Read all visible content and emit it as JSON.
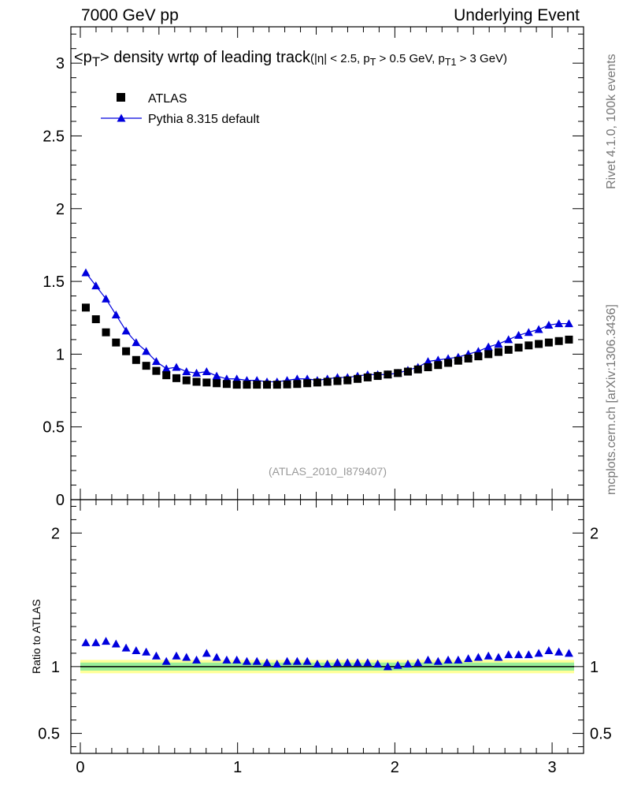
{
  "header": {
    "left": "7000 GeV pp",
    "right": "Underlying Event"
  },
  "title": {
    "main": "<p_T> density wrtφ of leading track",
    "sub": "(|η| < 2.5, p_T > 0.5 GeV, p_T1 > 3 GeV)"
  },
  "side_labels": {
    "rivet": "Rivet 4.1.0,  100k events",
    "mcplots": "mcplots.cern.ch [arXiv:1306.3436]"
  },
  "watermark": "(ATLAS_2010_I879407)",
  "ratio_ylabel": "Ratio to ATLAS",
  "legend": [
    {
      "label": "ATLAS",
      "marker": "square",
      "color": "#000000"
    },
    {
      "label": "Pythia 8.315 default",
      "marker": "triangle",
      "color": "#0000dd"
    }
  ],
  "chart_data": [
    {
      "type": "scatter",
      "panel": "main",
      "xlabel": "",
      "ylabel": "",
      "xlim": [
        -0.06,
        3.2
      ],
      "ylim": [
        0,
        3.25
      ],
      "yticks": [
        0,
        0.5,
        1,
        1.5,
        2,
        2.5,
        3
      ],
      "yticklabels": [
        "0",
        "0.5",
        "1",
        "1.5",
        "2",
        "2.5",
        "3"
      ],
      "x": [
        0.035,
        0.099,
        0.163,
        0.227,
        0.291,
        0.355,
        0.419,
        0.483,
        0.547,
        0.611,
        0.675,
        0.739,
        0.803,
        0.867,
        0.931,
        0.995,
        1.059,
        1.123,
        1.187,
        1.251,
        1.315,
        1.379,
        1.443,
        1.507,
        1.571,
        1.635,
        1.699,
        1.763,
        1.827,
        1.891,
        1.955,
        2.019,
        2.083,
        2.147,
        2.211,
        2.275,
        2.339,
        2.403,
        2.467,
        2.531,
        2.595,
        2.659,
        2.723,
        2.787,
        2.851,
        2.915,
        2.979,
        3.043,
        3.107
      ],
      "series": [
        {
          "name": "ATLAS",
          "color": "#000000",
          "values": [
            1.32,
            1.24,
            1.15,
            1.08,
            1.02,
            0.96,
            0.92,
            0.885,
            0.855,
            0.835,
            0.82,
            0.81,
            0.805,
            0.8,
            0.795,
            0.79,
            0.79,
            0.79,
            0.79,
            0.79,
            0.792,
            0.795,
            0.8,
            0.805,
            0.81,
            0.815,
            0.82,
            0.83,
            0.84,
            0.85,
            0.86,
            0.87,
            0.88,
            0.895,
            0.91,
            0.925,
            0.94,
            0.955,
            0.97,
            0.985,
            1.0,
            1.015,
            1.03,
            1.045,
            1.06,
            1.07,
            1.08,
            1.09,
            1.1
          ]
        },
        {
          "name": "Pythia 8.315 default",
          "color": "#0000dd",
          "values": [
            1.56,
            1.47,
            1.38,
            1.27,
            1.16,
            1.08,
            1.02,
            0.95,
            0.9,
            0.91,
            0.88,
            0.87,
            0.88,
            0.85,
            0.83,
            0.83,
            0.82,
            0.82,
            0.81,
            0.81,
            0.82,
            0.83,
            0.83,
            0.82,
            0.83,
            0.84,
            0.84,
            0.85,
            0.86,
            0.86,
            0.86,
            0.87,
            0.89,
            0.91,
            0.95,
            0.96,
            0.97,
            0.98,
            1.0,
            1.02,
            1.05,
            1.07,
            1.1,
            1.13,
            1.15,
            1.17,
            1.2,
            1.21,
            1.21
          ]
        }
      ]
    },
    {
      "type": "scatter",
      "panel": "ratio",
      "ylabel": "Ratio to ATLAS",
      "xlim": [
        -0.06,
        3.2
      ],
      "ylim": [
        0.35,
        2.25
      ],
      "yticks": [
        0.5,
        1,
        2
      ],
      "yticklabels": [
        "0.5",
        "1",
        "2"
      ],
      "xticks": [
        0,
        1,
        2,
        3
      ],
      "xticklabels": [
        "0",
        "1",
        "2",
        "3"
      ],
      "band_green": [
        0.97,
        1.03
      ],
      "band_yellow": [
        0.95,
        1.05
      ],
      "series": [
        {
          "name": "Pythia 8.315 default / ATLAS",
          "color": "#0000dd",
          "values": [
            1.18,
            1.18,
            1.19,
            1.17,
            1.14,
            1.12,
            1.11,
            1.08,
            1.04,
            1.08,
            1.07,
            1.05,
            1.1,
            1.07,
            1.05,
            1.05,
            1.04,
            1.04,
            1.03,
            1.02,
            1.04,
            1.04,
            1.04,
            1.02,
            1.02,
            1.03,
            1.03,
            1.03,
            1.03,
            1.02,
            1.0,
            1.01,
            1.02,
            1.03,
            1.05,
            1.04,
            1.05,
            1.05,
            1.06,
            1.07,
            1.08,
            1.07,
            1.09,
            1.09,
            1.09,
            1.1,
            1.12,
            1.11,
            1.1
          ]
        }
      ]
    }
  ]
}
